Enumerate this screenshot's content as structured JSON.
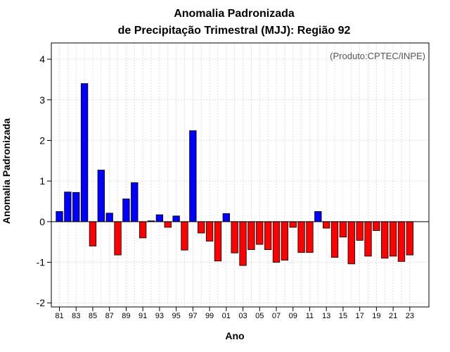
{
  "chart_data": {
    "type": "bar",
    "title": "Anomalia Padronizada",
    "subtitle": "de Precipitação Trimestral (MJJ): Região 92",
    "xlabel": "Ano",
    "ylabel": "Anomalia Padronizada",
    "annotation": "(Produto:CPTEC/INPE)",
    "ylim": [
      -2.1,
      4.4
    ],
    "yticks": [
      "-2",
      "-1",
      "0",
      "1",
      "2",
      "3",
      "4"
    ],
    "grid": true,
    "categories": [
      "81",
      "82",
      "83",
      "84",
      "85",
      "86",
      "87",
      "88",
      "89",
      "90",
      "91",
      "92",
      "93",
      "94",
      "95",
      "96",
      "97",
      "98",
      "99",
      "00",
      "01",
      "02",
      "03",
      "04",
      "05",
      "06",
      "07",
      "08",
      "09",
      "10",
      "11",
      "12",
      "13",
      "14",
      "15",
      "16",
      "17",
      "18",
      "19",
      "20",
      "21",
      "22",
      "23"
    ],
    "tick_labels": [
      "81",
      "83",
      "85",
      "87",
      "89",
      "91",
      "93",
      "95",
      "97",
      "99",
      "01",
      "03",
      "05",
      "07",
      "09",
      "11",
      "13",
      "15",
      "17",
      "19",
      "21",
      "23"
    ],
    "values": [
      0.25,
      0.73,
      0.72,
      3.4,
      -0.6,
      1.27,
      0.21,
      -0.82,
      0.56,
      0.96,
      -0.4,
      0.02,
      0.17,
      -0.14,
      0.14,
      -0.7,
      2.24,
      -0.28,
      -0.48,
      -0.97,
      0.2,
      -0.77,
      -1.08,
      -0.69,
      -0.56,
      -0.69,
      -1.0,
      -0.95,
      -0.14,
      -0.76,
      -0.76,
      0.25,
      -0.16,
      -0.88,
      -0.38,
      -1.04,
      -0.46,
      -0.85,
      -0.22,
      -0.9,
      -0.85,
      -0.98,
      -0.82
    ],
    "colors": {
      "positive": "#0000ff",
      "negative": "#ff0000",
      "grid": "#d3d3d3"
    }
  }
}
